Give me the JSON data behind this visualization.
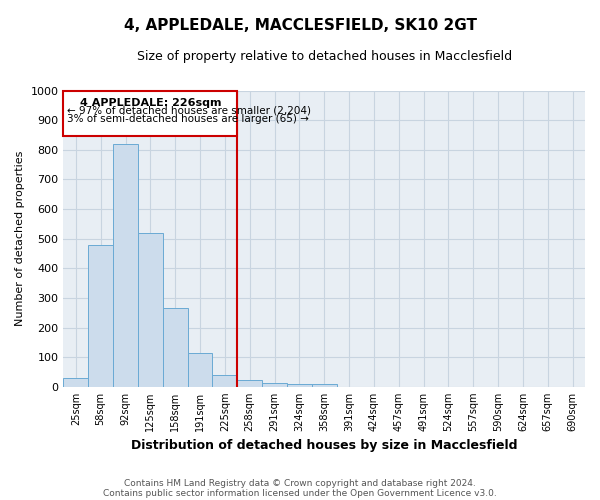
{
  "title": "4, APPLEDALE, MACCLESFIELD, SK10 2GT",
  "subtitle": "Size of property relative to detached houses in Macclesfield",
  "xlabel": "Distribution of detached houses by size in Macclesfield",
  "ylabel": "Number of detached properties",
  "footer_line1": "Contains HM Land Registry data © Crown copyright and database right 2024.",
  "footer_line2": "Contains public sector information licensed under the Open Government Licence v3.0.",
  "bin_labels": [
    "25sqm",
    "58sqm",
    "92sqm",
    "125sqm",
    "158sqm",
    "191sqm",
    "225sqm",
    "258sqm",
    "291sqm",
    "324sqm",
    "358sqm",
    "391sqm",
    "424sqm",
    "457sqm",
    "491sqm",
    "524sqm",
    "557sqm",
    "590sqm",
    "624sqm",
    "657sqm",
    "690sqm"
  ],
  "bar_values": [
    30,
    480,
    820,
    520,
    265,
    115,
    40,
    22,
    12,
    8,
    8,
    0,
    0,
    0,
    0,
    0,
    0,
    0,
    0,
    0,
    0
  ],
  "bar_color": "#ccdcec",
  "bar_edge_color": "#6aaad4",
  "ylim": [
    0,
    1000
  ],
  "yticks": [
    0,
    100,
    200,
    300,
    400,
    500,
    600,
    700,
    800,
    900,
    1000
  ],
  "property_label": "4 APPLEDALE: 226sqm",
  "annotation_line1": "← 97% of detached houses are smaller (2,204)",
  "annotation_line2": "3% of semi-detached houses are larger (65) →",
  "red_line_bin_index": 6.5,
  "annotation_box_color": "#ffffff",
  "annotation_border_color": "#cc0000",
  "red_line_color": "#cc0000",
  "grid_color": "#c8d4e0",
  "background_color": "#e8eef4",
  "title_fontsize": 11,
  "subtitle_fontsize": 9,
  "ylabel_fontsize": 8,
  "xlabel_fontsize": 9
}
